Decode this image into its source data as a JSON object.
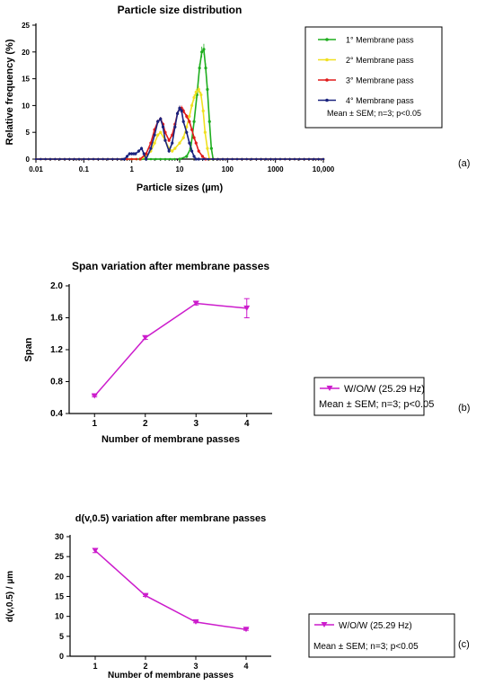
{
  "chart_data": [
    {
      "type": "line",
      "panel_label": "(a)",
      "title": "Particle size distribution",
      "xlabel": "Particle sizes (µm)",
      "ylabel": "Relative frequency (%)",
      "x_scale": "log",
      "xlim": [
        0.01,
        10000
      ],
      "ylim": [
        0,
        25
      ],
      "x_ticks": [
        0.01,
        0.1,
        1,
        10,
        100,
        1000,
        10000
      ],
      "x_tick_labels": [
        "0.01",
        "0.1",
        "1",
        "10",
        "100",
        "1000",
        "10,000"
      ],
      "y_ticks": [
        0,
        5,
        10,
        15,
        20,
        25
      ],
      "y_tick_labels": [
        "0",
        "5",
        "10",
        "15",
        "20",
        "25"
      ],
      "legend_placement": "right",
      "note": "Mean ± SEM; n=3; p<0.05",
      "series": [
        {
          "name": "1° Membrane pass",
          "color": "#1fae1f",
          "x": [
            10,
            14,
            17,
            20,
            23,
            26,
            29,
            32,
            35,
            38,
            42,
            46,
            50
          ],
          "y": [
            0,
            0.5,
            2,
            7,
            12,
            17,
            20,
            20.5,
            17,
            13,
            7,
            2,
            0
          ]
        },
        {
          "name": "2° Membrane pass",
          "color": "#f0e020",
          "x": [
            1.5,
            2,
            2.5,
            3,
            3.5,
            4,
            5,
            6,
            7,
            8,
            10,
            12,
            14,
            16,
            18,
            20,
            22,
            25,
            28,
            31,
            34,
            38,
            42
          ],
          "y": [
            0,
            0.5,
            1.5,
            3,
            4.5,
            5,
            3.5,
            2,
            1.5,
            2,
            3,
            4,
            6,
            8,
            10,
            11.5,
            12.5,
            13,
            12,
            9,
            5,
            2,
            0
          ]
        },
        {
          "name": "3° Membrane pass",
          "color": "#e01a1a",
          "x": [
            1.5,
            2,
            2.5,
            3,
            3.5,
            4,
            4.5,
            5,
            6,
            7,
            8,
            9,
            10,
            11,
            12,
            14,
            16,
            18,
            20,
            22,
            25,
            30,
            35
          ],
          "y": [
            0,
            1,
            3,
            5.5,
            7,
            7.5,
            6.5,
            5,
            3.5,
            4.5,
            6.5,
            8.5,
            9.5,
            9.5,
            9,
            8,
            7,
            5.5,
            4,
            3,
            1.5,
            0.5,
            0
          ]
        },
        {
          "name": "4° Membrane pass",
          "color": "#1a237e",
          "x": [
            0.7,
            0.8,
            0.9,
            1,
            1.1,
            1.2,
            1.4,
            1.6,
            1.8,
            2,
            2.5,
            3,
            3.5,
            4,
            4.5,
            5,
            6,
            7,
            8,
            9,
            10,
            11,
            12,
            14,
            16,
            18,
            20,
            22,
            25
          ],
          "y": [
            0,
            0.5,
            1,
            1,
            1,
            1,
            1.5,
            2,
            1,
            0,
            2,
            4.5,
            7,
            7.5,
            6,
            3.5,
            1.5,
            3,
            6,
            8.5,
            9.5,
            9,
            7,
            5,
            3,
            1.5,
            0.5,
            0,
            0
          ]
        }
      ]
    },
    {
      "type": "line",
      "panel_label": "(b)",
      "title": "Span variation after membrane passes",
      "xlabel": "Number of membrane passes",
      "ylabel": "Span",
      "xlim": [
        0.5,
        4.5
      ],
      "ylim": [
        0.4,
        2.0
      ],
      "x_ticks": [
        1,
        2,
        3,
        4
      ],
      "x_tick_labels": [
        "1",
        "2",
        "3",
        "4"
      ],
      "y_ticks": [
        0.4,
        0.8,
        1.2,
        1.6,
        2.0
      ],
      "y_tick_labels": [
        "0.4",
        "0.8",
        "1.2",
        "1.6",
        "2.0"
      ],
      "legend_placement": "right",
      "note": "Mean ± SEM; n=3; p<0.05",
      "series": [
        {
          "name": "W/O/W (25.29 Hz)",
          "color": "#cc1ccc",
          "x": [
            1,
            2,
            3,
            4
          ],
          "y": [
            0.62,
            1.35,
            1.78,
            1.72
          ],
          "err": [
            0.01,
            0.02,
            0.02,
            0.12
          ]
        }
      ]
    },
    {
      "type": "line",
      "panel_label": "(c)",
      "title": "d(v,0.5) variation after membrane passes",
      "xlabel": "Number of membrane passes",
      "ylabel": "d(v,0.5) / µm",
      "xlim": [
        0.5,
        4.5
      ],
      "ylim": [
        0,
        30
      ],
      "x_ticks": [
        1,
        2,
        3,
        4
      ],
      "x_tick_labels": [
        "1",
        "2",
        "3",
        "4"
      ],
      "y_ticks": [
        0,
        5,
        10,
        15,
        20,
        25,
        30
      ],
      "y_tick_labels": [
        "0",
        "5",
        "10",
        "15",
        "20",
        "25",
        "30"
      ],
      "legend_placement": "right",
      "note": "Mean ± SEM; n=3; p<0.05",
      "series": [
        {
          "name": "W/O/W (25.29 Hz)",
          "color": "#cc1ccc",
          "x": [
            1,
            2,
            3,
            4
          ],
          "y": [
            26.5,
            15.2,
            8.6,
            6.7
          ],
          "err": [
            0.5,
            0.2,
            0.2,
            0.2
          ]
        }
      ]
    }
  ]
}
